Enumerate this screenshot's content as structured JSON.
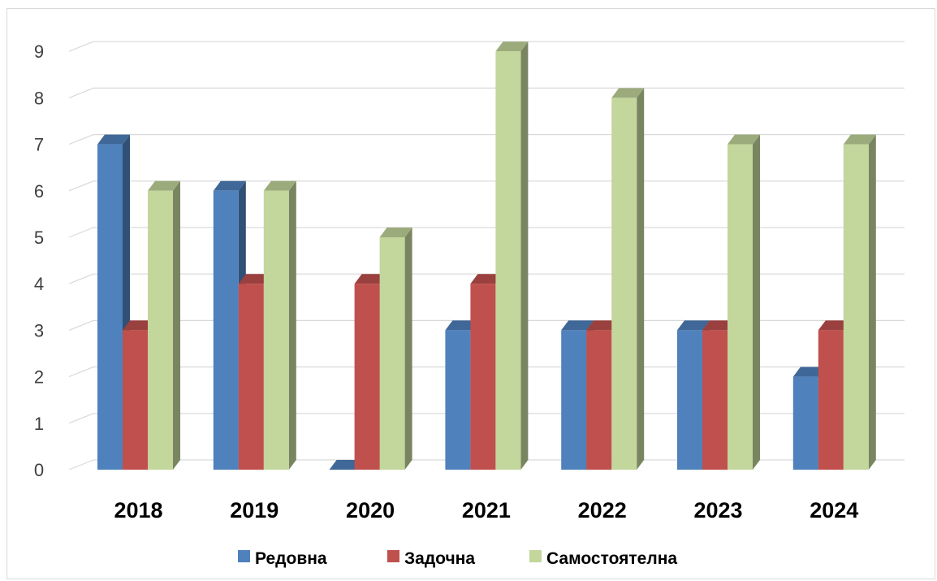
{
  "chart_data": {
    "type": "bar",
    "title": "",
    "xlabel": "",
    "ylabel": "",
    "categories": [
      "2018",
      "2019",
      "2020",
      "2021",
      "2022",
      "2023",
      "2024"
    ],
    "series": [
      {
        "name": "Редовна",
        "values": [
          7,
          6,
          0,
          3,
          3,
          3,
          2
        ],
        "color": "#4f81bd"
      },
      {
        "name": "Задочна",
        "values": [
          3,
          4,
          4,
          4,
          3,
          3,
          3
        ],
        "color": "#c0504d"
      },
      {
        "name": "Самостоятелна",
        "values": [
          6,
          6,
          5,
          9,
          8,
          7,
          7
        ],
        "color": "#c3d69b"
      }
    ],
    "ylim": [
      0,
      9
    ],
    "yticks": [
      "0",
      "1",
      "2",
      "3",
      "4",
      "5",
      "6",
      "7",
      "8",
      "9"
    ],
    "grid": true,
    "legend_position": "bottom",
    "style": "3d-clustered-column"
  }
}
